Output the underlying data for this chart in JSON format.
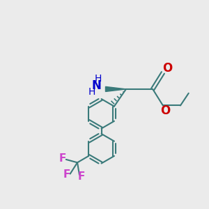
{
  "bg_color": "#ebebeb",
  "bond_color": "#3a7a7a",
  "bond_width": 1.5,
  "atom_colors": {
    "N": "#0000cc",
    "O": "#cc0000",
    "F": "#cc44cc",
    "C": "#3a7a7a",
    "H": "#3a7a7a"
  },
  "ring_r": 0.72,
  "figsize": [
    3.0,
    3.0
  ],
  "dpi": 100,
  "xlim": [
    0,
    10
  ],
  "ylim": [
    0,
    10
  ]
}
